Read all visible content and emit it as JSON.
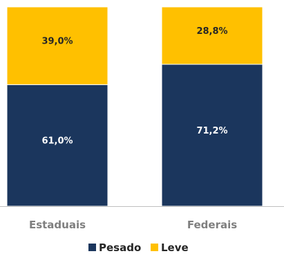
{
  "chart_data": {
    "type": "bar",
    "stacked": true,
    "categories": [
      "Estaduais",
      "Federais"
    ],
    "series": [
      {
        "name": "Pesado",
        "values": [
          61.0,
          71.2
        ],
        "labels": [
          "61,0%",
          "71,2%"
        ],
        "color": "#1b365d",
        "label_color": "#ffffff"
      },
      {
        "name": "Leve",
        "values": [
          39.0,
          28.8
        ],
        "labels": [
          "39,0%",
          "28,8%"
        ],
        "color": "#ffc000",
        "label_color": "#262626"
      }
    ],
    "ylim": [
      0,
      100
    ],
    "grid": false,
    "legend": "bottom",
    "axis_color": "#bfbfbf",
    "divider_color": "#ffffff"
  }
}
